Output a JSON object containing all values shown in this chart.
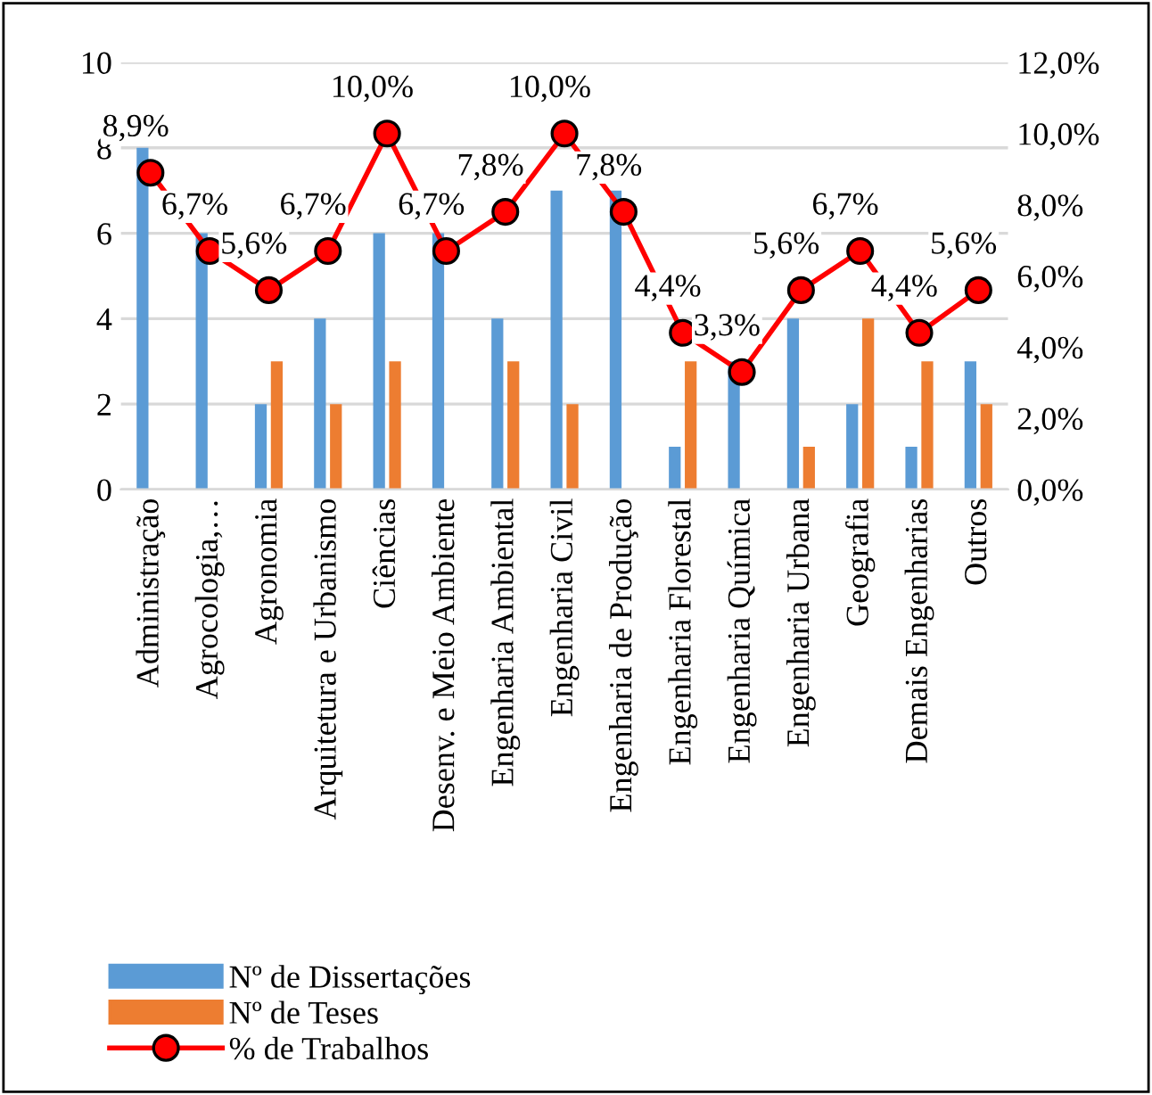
{
  "chart_data": {
    "type": "bar",
    "categories": [
      "Administração",
      "Agrocologia,…",
      "Agronomia",
      "Arquitetura e Urbanismo",
      "Ciências",
      "Desenv. e Meio Ambiente",
      "Engenharia Ambiental",
      "Engenharia Civil",
      "Engenharia de Produção",
      "Engenharia Florestal",
      "Engenharia Química",
      "Engenharia Urbana",
      "Geografia",
      "Demais Engenharias",
      "Outros"
    ],
    "series": [
      {
        "name": "Nº de Dissertações",
        "color": "#5b9bd5",
        "values": [
          8,
          6,
          2,
          4,
          6,
          6,
          4,
          7,
          7,
          1,
          3,
          4,
          2,
          1,
          3
        ]
      },
      {
        "name": "Nº de Teses",
        "color": "#ed7d31",
        "values": [
          0,
          0,
          3,
          2,
          3,
          0,
          3,
          2,
          0,
          3,
          0,
          1,
          4,
          3,
          2
        ]
      },
      {
        "name": "% de Trabalhos",
        "color": "#ff0000",
        "type": "line",
        "axis": "y2",
        "marker": "circle",
        "values": [
          8.9,
          6.7,
          5.6,
          6.7,
          10.0,
          6.7,
          7.8,
          10.0,
          7.8,
          4.4,
          3.3,
          5.6,
          6.7,
          4.4,
          5.6
        ],
        "value_labels": [
          "8,9%",
          "6,7%",
          "5,6%",
          "6,7%",
          "10,0%",
          "6,7%",
          "7,8%",
          "10,0%",
          "7,8%",
          "4,4%",
          "3,3%",
          "5,6%",
          "6,7%",
          "4,4%",
          "5,6%"
        ]
      }
    ],
    "ylim": [
      0,
      10
    ],
    "yticks": [
      0,
      2,
      4,
      6,
      8,
      10
    ],
    "y2lim": [
      0,
      12
    ],
    "y2ticks": [
      {
        "value": 0,
        "label": "0,0%"
      },
      {
        "value": 2,
        "label": "2,0%"
      },
      {
        "value": 4,
        "label": "4,0%"
      },
      {
        "value": 6,
        "label": "6,0%"
      },
      {
        "value": 8,
        "label": "8,0%"
      },
      {
        "value": 10,
        "label": "10,0%"
      },
      {
        "value": 12,
        "label": "12,0%"
      }
    ],
    "grid": "y",
    "legend": "bottom"
  }
}
